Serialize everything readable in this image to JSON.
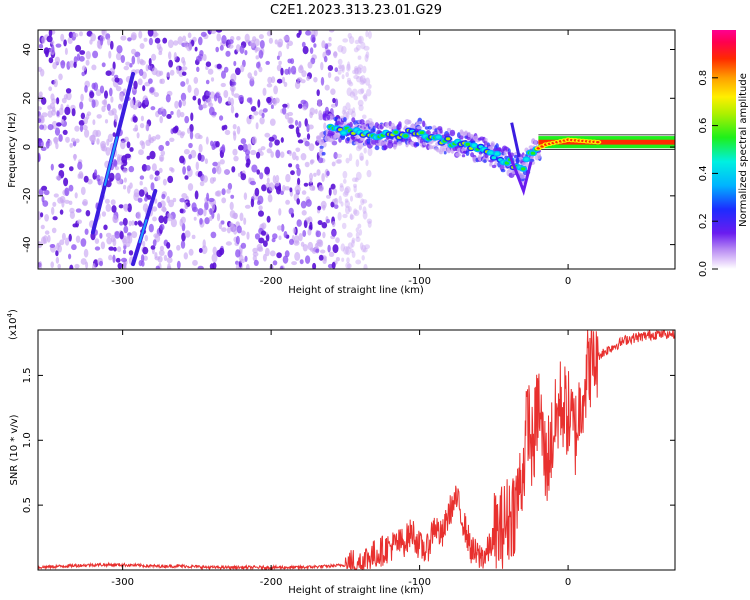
{
  "title": "C2E1.2023.313.23.01.G29",
  "colors": {
    "snr_line": "#e8302e",
    "axis": "#000000",
    "scatter_light": "#c9a8f3",
    "scatter_dark": "#5a0fd6"
  },
  "chart_data": [
    {
      "type": "heatmap",
      "xlabel": "Height of straight line (km)",
      "ylabel": "Frequency (Hz)",
      "xlim": [
        -357,
        72
      ],
      "ylim": [
        -50,
        48
      ],
      "x_ticks": [
        -300,
        -200,
        -100,
        0
      ],
      "y_ticks": [
        40,
        20,
        0,
        -20,
        -40
      ],
      "grid": false,
      "colorbar": {
        "label": "Normalized spectral amplitude",
        "range": [
          0.0,
          1.0
        ],
        "ticks": [
          "0.0",
          "0.2",
          "0.4",
          "0.6",
          "0.8"
        ],
        "colormap": "rainbow (violet → blue → cyan → green → yellow → red → magenta)"
      },
      "noise_region_x": [
        -357,
        -145
      ],
      "signal_track": [
        {
          "x": -165,
          "f": 8
        },
        {
          "x": -150,
          "f": 7
        },
        {
          "x": -140,
          "f": 6
        },
        {
          "x": -130,
          "f": 4
        },
        {
          "x": -115,
          "f": 5
        },
        {
          "x": -100,
          "f": 6
        },
        {
          "x": -90,
          "f": 3
        },
        {
          "x": -80,
          "f": 2
        },
        {
          "x": -70,
          "f": 1
        },
        {
          "x": -60,
          "f": -1
        },
        {
          "x": -50,
          "f": -3
        },
        {
          "x": -40,
          "f": -6
        },
        {
          "x": -32,
          "f": -10
        },
        {
          "x": -25,
          "f": -2
        },
        {
          "x": -15,
          "f": 1
        },
        {
          "x": 0,
          "f": 3
        },
        {
          "x": 20,
          "f": 2
        },
        {
          "x": 72,
          "f": 2
        }
      ],
      "diagonal_streaks": [
        {
          "x0": -320,
          "f0": -35,
          "x1": -293,
          "f1": 30
        },
        {
          "x0": -293,
          "f0": -48,
          "x1": -278,
          "f1": -18
        }
      ]
    },
    {
      "type": "line",
      "xlabel": "Height of straight line (km)",
      "ylabel": "SNR (10 * v/v)",
      "scale_label": "(x10",
      "scale_exponent": "4",
      "scale_close": ")",
      "xlim": [
        -357,
        72
      ],
      "ylim": [
        0.0,
        1.85
      ],
      "x_ticks": [
        -300,
        -200,
        -100,
        0
      ],
      "y_ticks": [
        "0.5",
        "1.0",
        "1.5"
      ],
      "grid": false,
      "series": [
        {
          "points": [
            [
              -357,
              0.02
            ],
            [
              -340,
              0.03
            ],
            [
              -320,
              0.04
            ],
            [
              -300,
              0.04
            ],
            [
              -280,
              0.03
            ],
            [
              -260,
              0.03
            ],
            [
              -240,
              0.02
            ],
            [
              -220,
              0.02
            ],
            [
              -200,
              0.02
            ],
            [
              -180,
              0.02
            ],
            [
              -160,
              0.03
            ],
            [
              -150,
              0.04
            ],
            [
              -140,
              0.06
            ],
            [
              -130,
              0.12
            ],
            [
              -120,
              0.18
            ],
            [
              -110,
              0.22
            ],
            [
              -105,
              0.3
            ],
            [
              -100,
              0.18
            ],
            [
              -95,
              0.15
            ],
            [
              -90,
              0.35
            ],
            [
              -85,
              0.25
            ],
            [
              -80,
              0.45
            ],
            [
              -75,
              0.55
            ],
            [
              -70,
              0.35
            ],
            [
              -65,
              0.15
            ],
            [
              -60,
              0.1
            ],
            [
              -55,
              0.12
            ],
            [
              -50,
              0.25
            ],
            [
              -45,
              0.3
            ],
            [
              -40,
              0.4
            ],
            [
              -35,
              0.5
            ],
            [
              -30,
              0.8
            ],
            [
              -27,
              1.2
            ],
            [
              -24,
              0.9
            ],
            [
              -20,
              1.3
            ],
            [
              -15,
              0.8
            ],
            [
              -10,
              1.05
            ],
            [
              -5,
              1.3
            ],
            [
              0,
              1.2
            ],
            [
              5,
              1.05
            ],
            [
              10,
              1.4
            ],
            [
              15,
              1.6
            ],
            [
              20,
              1.65
            ],
            [
              30,
              1.72
            ],
            [
              40,
              1.78
            ],
            [
              50,
              1.8
            ],
            [
              60,
              1.82
            ],
            [
              72,
              1.82
            ]
          ]
        }
      ]
    }
  ]
}
